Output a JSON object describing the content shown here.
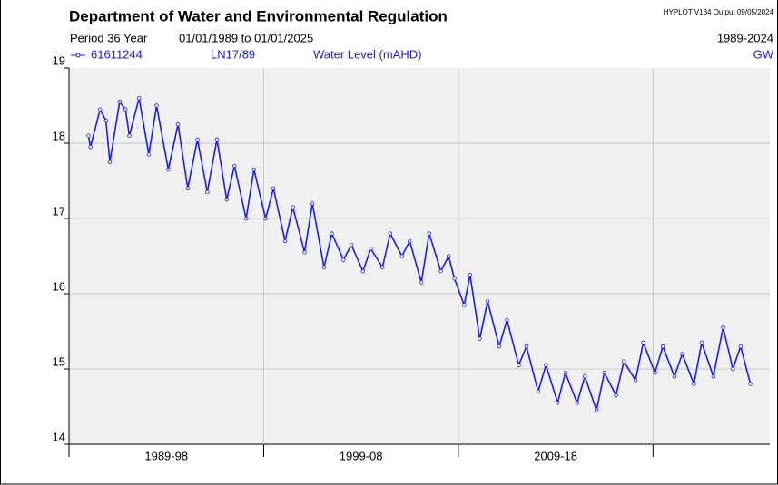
{
  "chart_data": {
    "type": "line",
    "title": "Department of Water and Environmental Regulation",
    "program": "HYPLOT V134  Output 09/05/2024",
    "period_label": "Period  36 Year",
    "period_range": "01/01/1989  to  01/01/2025",
    "range_label": "1989-2024",
    "site_label": "LN17/89",
    "ylabel": "Water Level (mAHD)",
    "tag": "GW",
    "x": [
      1990.0,
      1990.1,
      1990.6,
      1990.9,
      1991.1,
      1991.6,
      1991.9,
      1992.1,
      1992.6,
      1993.1,
      1993.5,
      1994.1,
      1994.6,
      1995.1,
      1995.6,
      1996.1,
      1996.6,
      1997.1,
      1997.5,
      1998.1,
      1998.5,
      1999.1,
      1999.5,
      2000.1,
      2000.5,
      2001.1,
      2001.5,
      2002.1,
      2002.5,
      2003.1,
      2003.5,
      2004.1,
      2004.5,
      2005.1,
      2005.5,
      2006.1,
      2006.5,
      2007.1,
      2007.5,
      2008.1,
      2008.5,
      2008.8,
      2009.3,
      2009.6,
      2010.1,
      2010.5,
      2011.1,
      2011.5,
      2012.1,
      2012.5,
      2013.1,
      2013.5,
      2014.1,
      2014.5,
      2015.1,
      2015.5,
      2016.1,
      2016.5,
      2017.1,
      2017.5,
      2018.1,
      2018.5,
      2019.1,
      2019.5,
      2020.1,
      2020.5,
      2021.1,
      2021.5,
      2022.1,
      2022.6,
      2023.1,
      2023.5,
      2024.0
    ],
    "series": [
      {
        "name": "61611244",
        "color": "#1a1aff",
        "values": [
          18.1,
          17.95,
          18.45,
          18.3,
          17.75,
          18.55,
          18.45,
          18.1,
          18.6,
          17.85,
          18.5,
          17.65,
          18.25,
          17.4,
          18.05,
          17.35,
          18.05,
          17.25,
          17.7,
          17.0,
          17.65,
          17.0,
          17.4,
          16.7,
          17.15,
          16.55,
          17.2,
          16.35,
          16.8,
          16.45,
          16.65,
          16.3,
          16.6,
          16.35,
          16.8,
          16.5,
          16.7,
          16.15,
          16.8,
          16.3,
          16.5,
          16.2,
          15.85,
          16.25,
          15.4,
          15.9,
          15.3,
          15.65,
          15.05,
          15.3,
          14.7,
          15.05,
          14.55,
          14.95,
          14.55,
          14.9,
          14.45,
          14.95,
          14.65,
          15.1,
          14.85,
          15.35,
          14.95,
          15.3,
          14.9,
          15.2,
          14.8,
          15.35,
          14.9,
          15.55,
          15.0,
          15.3,
          14.8
        ]
      }
    ],
    "xlim": [
      1989,
      2025
    ],
    "xticks": [
      {
        "value": 1994,
        "label": "1989-98"
      },
      {
        "value": 2004,
        "label": "1999-08"
      },
      {
        "value": 2014,
        "label": "2009-18"
      },
      {
        "value": 2024,
        "label": null
      }
    ],
    "ylim": [
      14,
      19
    ],
    "yticks": [
      14,
      15,
      16,
      17,
      18,
      19
    ],
    "grid": true
  }
}
